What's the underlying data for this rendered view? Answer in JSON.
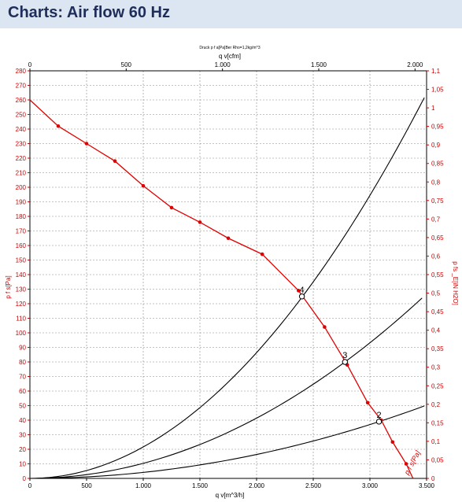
{
  "header": {
    "title": "Charts: Air flow 60 Hz"
  },
  "colors": {
    "header_bg": "#dce6f2",
    "title": "#1f2d5a",
    "left_axis": "#cc0000",
    "right_axis": "#cc0000",
    "curve_red": "#e00000",
    "curve_black": "#000000",
    "grid": "#888888"
  },
  "chart_data": {
    "type": "line",
    "caption": "Druck p f a[Pa]Ber Rho=1,2kg/m^3",
    "x_bottom": {
      "label": "q v[m^3/h]",
      "range": [
        0,
        3500
      ],
      "ticks": [
        0,
        500,
        1000,
        1500,
        2000,
        2500,
        3000,
        3500
      ],
      "tick_labels": [
        "0",
        "500",
        "1.000",
        "1.500",
        "2.000",
        "2.500",
        "3.000",
        "3.500"
      ]
    },
    "x_top": {
      "label": "q v[cfm]",
      "range": [
        0,
        2060
      ],
      "ticks": [
        0,
        500,
        1000,
        1500,
        2000
      ],
      "tick_labels": [
        "0",
        "500",
        "1.000",
        "1.500",
        "2.000"
      ]
    },
    "y_left": {
      "label": "p f s[Pa]",
      "range": [
        0,
        280
      ],
      "ticks": [
        0,
        10,
        20,
        30,
        40,
        50,
        60,
        70,
        80,
        90,
        100,
        110,
        120,
        130,
        140,
        150,
        160,
        170,
        180,
        190,
        200,
        210,
        220,
        230,
        240,
        250,
        260,
        270,
        280
      ]
    },
    "y_right": {
      "label": "p fs _E[iN H2O]",
      "range": [
        0,
        1.1
      ],
      "ticks": [
        0,
        0.05,
        0.1,
        0.15,
        0.2,
        0.25,
        0.3,
        0.35,
        0.4,
        0.45,
        0.5,
        0.55,
        0.6,
        0.65,
        0.7,
        0.75,
        0.8,
        0.85,
        0.9,
        0.95,
        1,
        1.05,
        1.1
      ],
      "tick_labels": [
        "0",
        "0,05",
        "0,1",
        "0,15",
        "0,2",
        "0,25",
        "0,3",
        "0,35",
        "0,4",
        "0,45",
        "0,5",
        "0,55",
        "0,6",
        "0,65",
        "0,7",
        "0,75",
        "0,8",
        "0,85",
        "0,9",
        "0,95",
        "1",
        "1,05",
        "1,1"
      ]
    },
    "grid": true,
    "fan_curve": {
      "label": "p f s[Pa]",
      "points": [
        [
          0,
          260
        ],
        [
          250,
          242
        ],
        [
          500,
          230
        ],
        [
          750,
          218
        ],
        [
          1000,
          201
        ],
        [
          1250,
          186
        ],
        [
          1500,
          176
        ],
        [
          1750,
          165
        ],
        [
          2050,
          154
        ],
        [
          2370,
          129
        ],
        [
          2600,
          104
        ],
        [
          2800,
          78
        ],
        [
          2980,
          52
        ],
        [
          3100,
          40
        ],
        [
          3200,
          25
        ],
        [
          3320,
          10
        ],
        [
          3380,
          0
        ]
      ]
    },
    "system_curves": [
      {
        "label": "4",
        "coef": 2.16e-05,
        "x_end": 3480
      },
      {
        "label": "3",
        "coef": 1.035e-05,
        "x_end": 3460
      },
      {
        "label": "2",
        "coef": 4.11e-06,
        "x_end": 3480
      }
    ],
    "operating_points": [
      {
        "label": "4",
        "x": 2400,
        "y": 125
      },
      {
        "label": "3",
        "x": 2780,
        "y": 80
      },
      {
        "label": "2",
        "x": 3080,
        "y": 39
      }
    ]
  }
}
